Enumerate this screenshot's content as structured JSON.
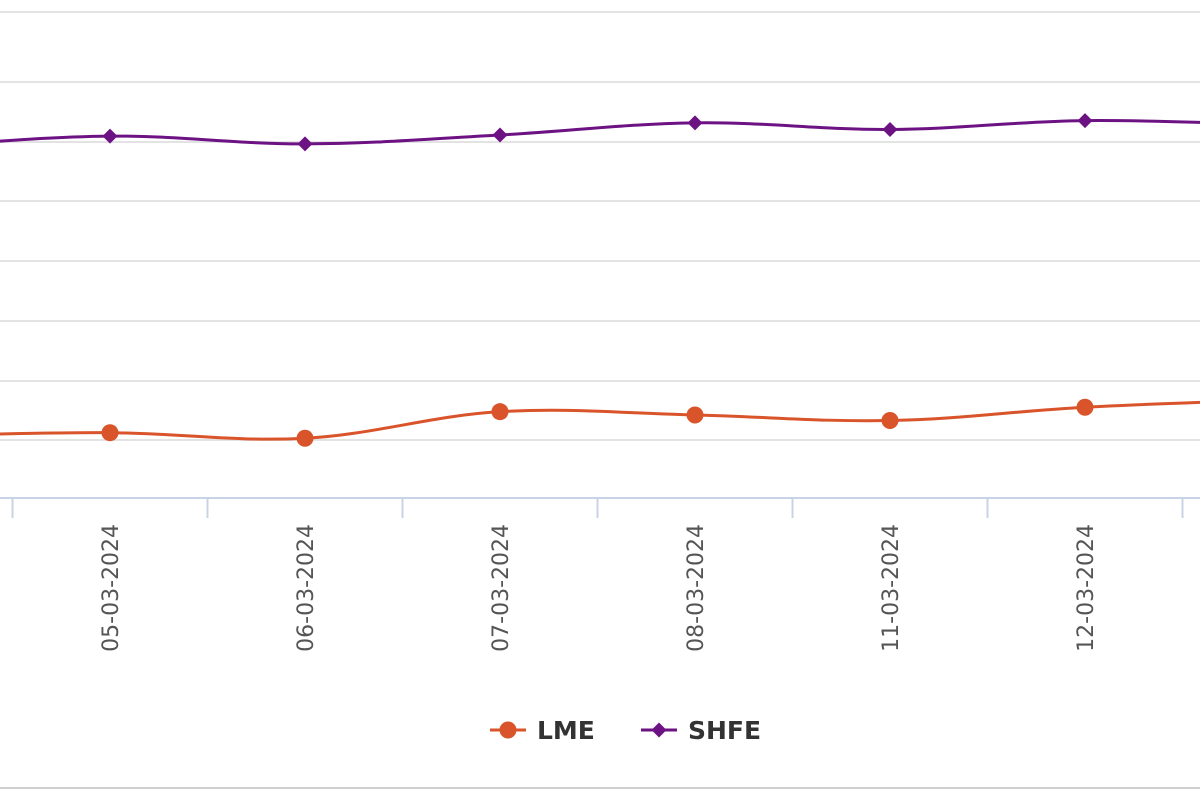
{
  "chart_data": {
    "type": "line",
    "categories": [
      "05-03-2024",
      "06-03-2024",
      "07-03-2024",
      "08-03-2024",
      "11-03-2024",
      "12-03-2024"
    ],
    "series": [
      {
        "name": "LME",
        "values": [
          9,
          4,
          28,
          25,
          20,
          32
        ],
        "color": "#d9542b",
        "marker": "circle"
      },
      {
        "name": "SHFE",
        "values": [
          277,
          270,
          278,
          289,
          283,
          291
        ],
        "color": "#6d1283",
        "marker": "diamond"
      }
    ],
    "title": "",
    "xlabel": "",
    "ylabel": "",
    "grid": true,
    "legend": "bottom-center"
  }
}
